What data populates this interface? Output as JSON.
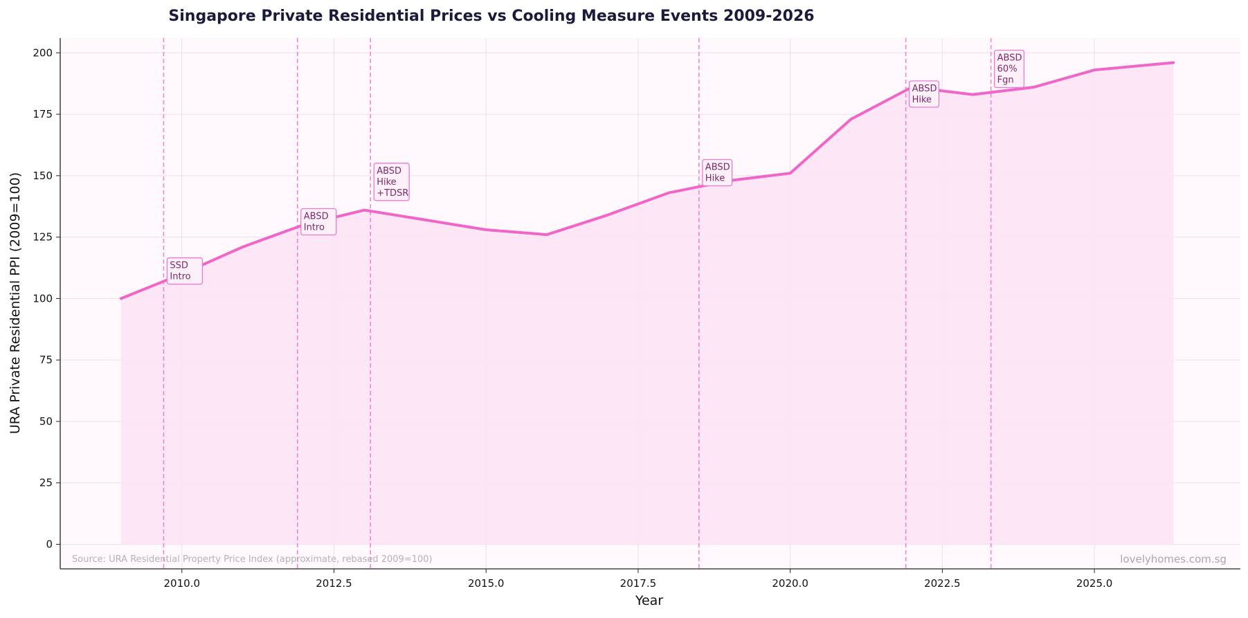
{
  "chart_data": {
    "type": "line",
    "title": "Singapore Private Residential Prices vs Cooling Measure Events 2009-2026",
    "xlabel": "Year",
    "ylabel": "URA Private Residential PPI (2009=100)",
    "xlim": [
      2008.0,
      2027.4
    ],
    "ylim": [
      -10,
      206
    ],
    "xticks": [
      2010.0,
      2012.5,
      2015.0,
      2017.5,
      2020.0,
      2022.5,
      2025.0
    ],
    "xtick_labels": [
      "2010.0",
      "2012.5",
      "2015.0",
      "2017.5",
      "2020.0",
      "2022.5",
      "2025.0"
    ],
    "yticks": [
      0,
      25,
      50,
      75,
      100,
      125,
      150,
      175,
      200
    ],
    "ytick_labels": [
      "0",
      "25",
      "50",
      "75",
      "100",
      "125",
      "150",
      "175",
      "200"
    ],
    "grid": true,
    "series": [
      {
        "x": [
          2009,
          2010,
          2011,
          2012,
          2013,
          2014,
          2015,
          2016,
          2017,
          2018,
          2019,
          2020,
          2021,
          2022,
          2023,
          2024,
          2025,
          2026.3
        ],
        "values": [
          100,
          110,
          121,
          130,
          136,
          132,
          128,
          126,
          134,
          143,
          148,
          151,
          173,
          186,
          183,
          186,
          193,
          196
        ],
        "color": "#f066c8",
        "fill": true
      }
    ],
    "events": [
      {
        "x": 2009.7,
        "lines": [
          "SSD",
          "Intro"
        ],
        "label_y": 107
      },
      {
        "x": 2011.9,
        "lines": [
          "ABSD",
          "Intro"
        ],
        "label_y": 127
      },
      {
        "x": 2013.1,
        "lines": [
          "ABSD",
          "Hike",
          "+TDSR"
        ],
        "label_y": 141
      },
      {
        "x": 2018.5,
        "lines": [
          "ABSD",
          "Hike"
        ],
        "label_y": 147
      },
      {
        "x": 2021.9,
        "lines": [
          "ABSD",
          "Hike"
        ],
        "label_y": 179
      },
      {
        "x": 2023.3,
        "lines": [
          "ABSD",
          "60%",
          "Fgn"
        ],
        "label_y": 187
      }
    ],
    "source_note": "Source: URA Residential Property Price Index (approximate, rebased 2009=100)",
    "watermark": "lovelyhomes.com.sg"
  },
  "colors": {
    "line": "#f066c8",
    "fill": "#fde4f4",
    "plot_bg": "#fff8fc",
    "event_line": "#f066c8",
    "annotation_border": "#e87ad2",
    "annotation_bg": "#fdf0f9",
    "grid": "#f0dcea"
  }
}
